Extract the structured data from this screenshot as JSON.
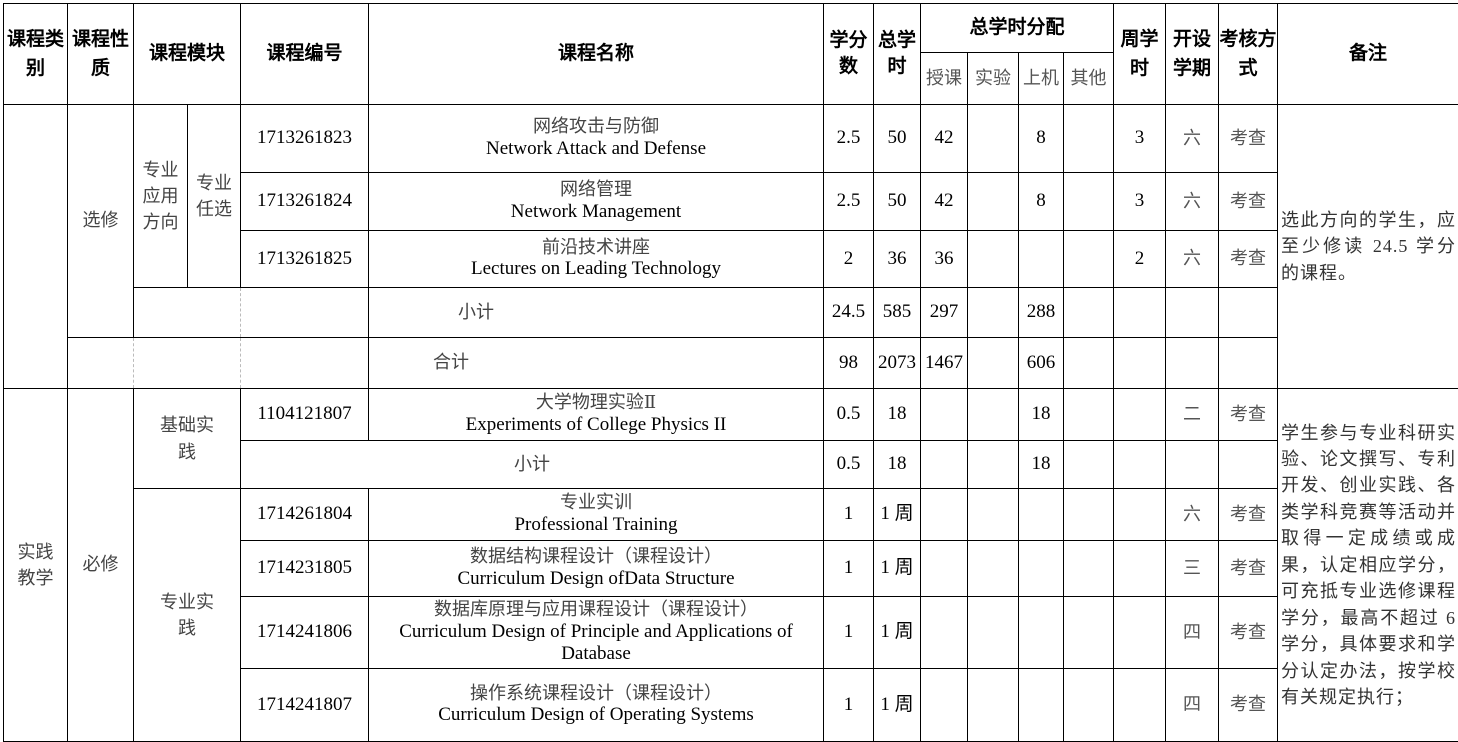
{
  "header": {
    "category": "课程类别",
    "nature": "课程性质",
    "module": "课程模块",
    "code": "课程编号",
    "name": "课程名称",
    "credits": "学分数",
    "total_hours": "总学时",
    "hours_distribution": "总学时分配",
    "lecture": "授课",
    "experiment": "实验",
    "computer": "上机",
    "other": "其他",
    "weekly_hours": "周学时",
    "semester": "开设学期",
    "assessment": "考核方式",
    "remarks": "备注"
  },
  "section1": {
    "nature": "选修",
    "module_direction": "专业应用方向",
    "module_type": "专业任选",
    "rows": [
      {
        "code": "1713261823",
        "name_zh": "网络攻击与防御",
        "name_en": "Network Attack and Defense",
        "credits": "2.5",
        "total": "50",
        "lecture": "42",
        "experiment": "",
        "computer": "8",
        "other": "",
        "weekly": "3",
        "semester": "六",
        "assessment": "考查"
      },
      {
        "code": "1713261824",
        "name_zh": "网络管理",
        "name_en": "Network Management",
        "credits": "2.5",
        "total": "50",
        "lecture": "42",
        "experiment": "",
        "computer": "8",
        "other": "",
        "weekly": "3",
        "semester": "六",
        "assessment": "考查"
      },
      {
        "code": "1713261825",
        "name_zh": "前沿技术讲座",
        "name_en": "Lectures on Leading Technology",
        "credits": "2",
        "total": "36",
        "lecture": "36",
        "experiment": "",
        "computer": "",
        "other": "",
        "weekly": "2",
        "semester": "六",
        "assessment": "考查"
      }
    ],
    "subtotal": {
      "label": "小计",
      "credits": "24.5",
      "total": "585",
      "lecture": "297",
      "computer": "288"
    },
    "total": {
      "label": "合计",
      "credits": "98",
      "total": "2073",
      "lecture": "1467",
      "computer": "606"
    },
    "remark": "选此方向的学生，应至少修读 24.5 学分的课程。"
  },
  "section2": {
    "category": "实践教学",
    "nature": "必修",
    "basic_module": "基础实践",
    "basic_rows": [
      {
        "code": "1104121807",
        "name_zh": "大学物理实验Ⅱ",
        "name_en": "Experiments of College Physics II",
        "credits": "0.5",
        "total": "18",
        "computer": "18",
        "semester": "二",
        "assessment": "考查"
      }
    ],
    "basic_subtotal": {
      "label": "小计",
      "credits": "0.5",
      "total": "18",
      "computer": "18"
    },
    "pro_module": "专业实践",
    "pro_rows": [
      {
        "code": "1714261804",
        "name_zh": "专业实训",
        "name_en": "Professional Training",
        "credits": "1",
        "total": "1 周",
        "semester": "六",
        "assessment": "考查"
      },
      {
        "code": "1714231805",
        "name_zh": "数据结构课程设计（课程设计）",
        "name_en": "Curriculum Design ofData Structure",
        "credits": "1",
        "total": "1 周",
        "semester": "三",
        "assessment": "考查"
      },
      {
        "code": "1714241806",
        "name_zh": "数据库原理与应用课程设计（课程设计）",
        "name_en": "Curriculum Design of Principle and Applications of Database",
        "credits": "1",
        "total": "1 周",
        "semester": "四",
        "assessment": "考查"
      },
      {
        "code": "1714241807",
        "name_zh": "操作系统课程设计（课程设计）",
        "name_en": "Curriculum Design of Operating Systems",
        "credits": "1",
        "total": "1 周",
        "semester": "四",
        "assessment": "考查"
      }
    ],
    "remark": "学生参与专业科研实验、论文撰写、专利开发、创业实践、各类学科竞赛等活动并取得一定成绩或成果，认定相应学分，可充抵专业选修课程学分，最高不超过 6 学分，具体要求和学分认定办法，按学校有关规定执行；"
  }
}
